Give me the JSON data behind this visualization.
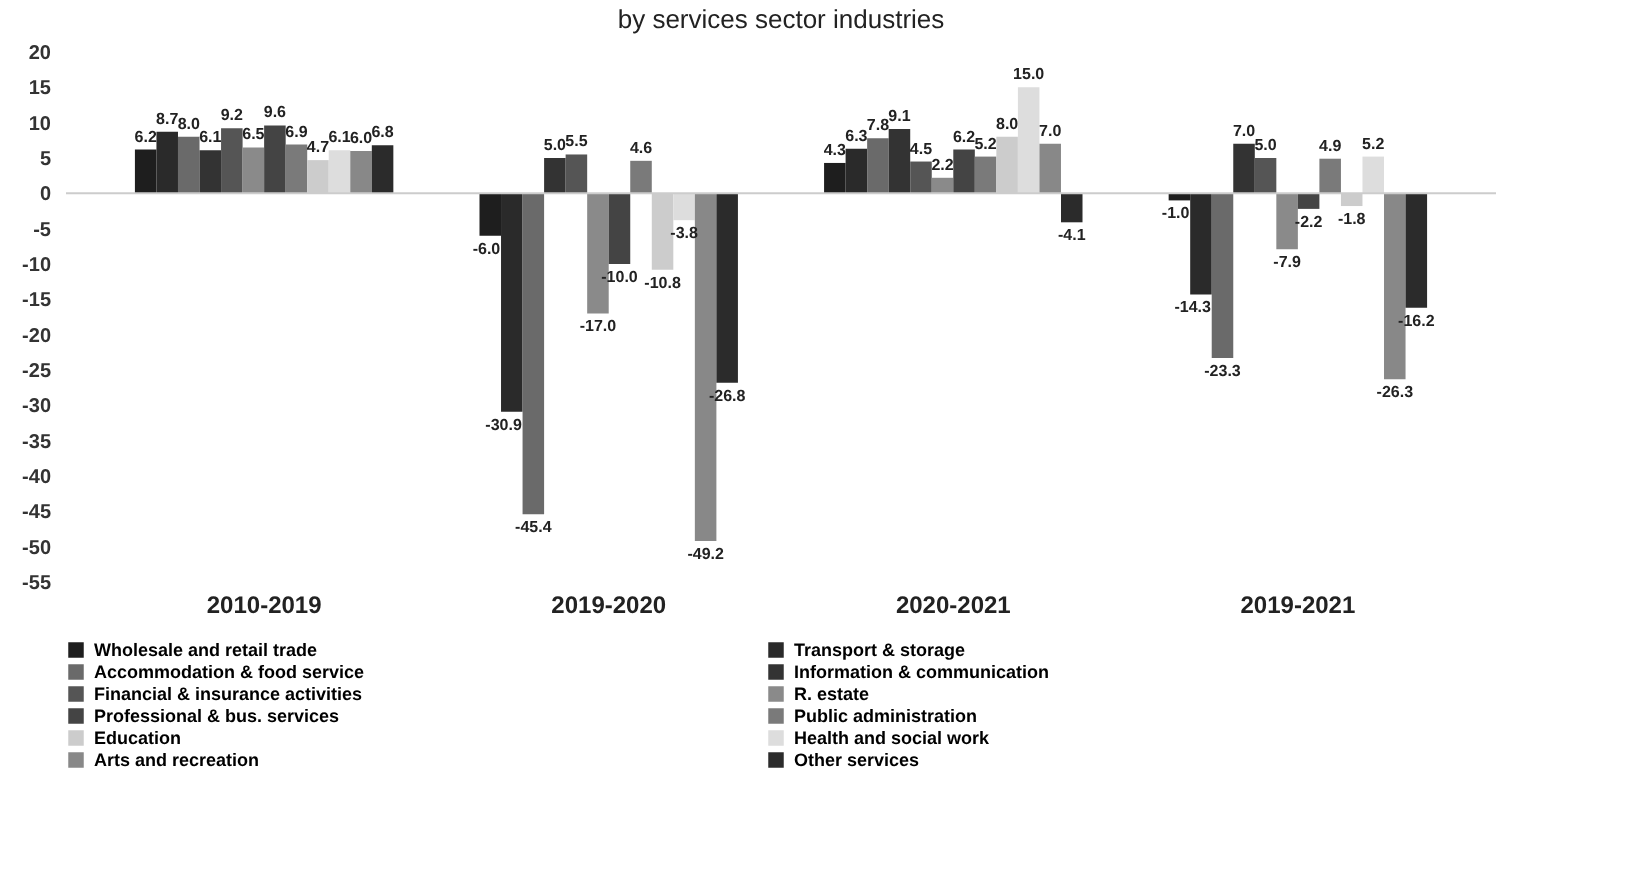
{
  "chart_data": {
    "type": "bar",
    "title": "by services sector industries",
    "categories": [
      "2010-2019",
      "2019-2020",
      "2020-2021",
      "2019-2021"
    ],
    "series": [
      {
        "name": "Wholesale and retail trade",
        "color": "#1e1e1e",
        "values": [
          6.2,
          -6.0,
          4.3,
          -1.0
        ],
        "value_labels": [
          "6.2",
          "-6.0",
          "4.3",
          "-1.0"
        ]
      },
      {
        "name": "Transport & storage",
        "color": "#2a2a2a",
        "values": [
          8.7,
          -30.9,
          6.3,
          -14.3
        ],
        "value_labels": [
          "8.7",
          "-30.9",
          "6.3",
          "-14.3"
        ]
      },
      {
        "name": "Accommodation & food service",
        "color": "#6a6a6a",
        "values": [
          8.0,
          -45.4,
          7.8,
          -23.3
        ],
        "value_labels": [
          "8.0",
          "-45.4",
          "7.8",
          "-23.3"
        ]
      },
      {
        "name": "Information & communication",
        "color": "#333333",
        "values": [
          6.1,
          5.0,
          9.1,
          7.0
        ],
        "value_labels": [
          "6.1",
          "5.0",
          "9.1",
          "7.0"
        ]
      },
      {
        "name": "Financial & insurance activities",
        "color": "#555555",
        "values": [
          9.2,
          5.5,
          4.5,
          5.0
        ],
        "value_labels": [
          "9.2",
          "5.5",
          "4.5",
          "5.0"
        ]
      },
      {
        "name": "R. estate",
        "color": "#8a8a8a",
        "values": [
          6.5,
          -17.0,
          2.2,
          -7.9
        ],
        "value_labels": [
          "6.5",
          "-17.0",
          "2.2",
          "-7.9"
        ]
      },
      {
        "name": "Professional & bus. services",
        "color": "#444444",
        "values": [
          9.6,
          -10.0,
          6.2,
          -2.2
        ],
        "value_labels": [
          "9.6",
          "-10.0",
          "6.2",
          "-2.2"
        ]
      },
      {
        "name": "Public administration",
        "color": "#7a7a7a",
        "values": [
          6.9,
          4.6,
          5.2,
          4.9
        ],
        "value_labels": [
          "6.9",
          "4.6",
          "5.2",
          "4.9"
        ]
      },
      {
        "name": "Education",
        "color": "#cccccc",
        "values": [
          4.7,
          -10.8,
          8.0,
          -1.8
        ],
        "value_labels": [
          "4.7",
          "-10.8",
          "8.0",
          "-1.8"
        ]
      },
      {
        "name": "Health and social work",
        "color": "#dddddd",
        "values": [
          6.1,
          -3.8,
          15.0,
          5.2
        ],
        "value_labels": [
          "6.1",
          "-3.8",
          "15.0",
          "5.2"
        ]
      },
      {
        "name": "Arts and recreation",
        "color": "#888888",
        "values": [
          6.0,
          -49.2,
          7.0,
          -26.3
        ],
        "value_labels": [
          "6.0",
          "-49.2",
          "7.0",
          "-26.3"
        ]
      },
      {
        "name": "Other services",
        "color": "#2b2b2b",
        "values": [
          6.8,
          -26.8,
          -4.1,
          -16.2
        ],
        "value_labels": [
          "6.8",
          "-26.8",
          "-4.1",
          "-16.2"
        ]
      }
    ],
    "ylim": [
      -55,
      20
    ],
    "yticks": [
      -55,
      -50,
      -45,
      -40,
      -35,
      -30,
      -25,
      -20,
      -15,
      -10,
      -5,
      0,
      5,
      10,
      15,
      20
    ],
    "ref_lines": [
      {
        "axis": "y",
        "value": 0,
        "color": "#cccccc"
      }
    ],
    "data_labels": true,
    "grid": false,
    "legend": "bottom"
  }
}
